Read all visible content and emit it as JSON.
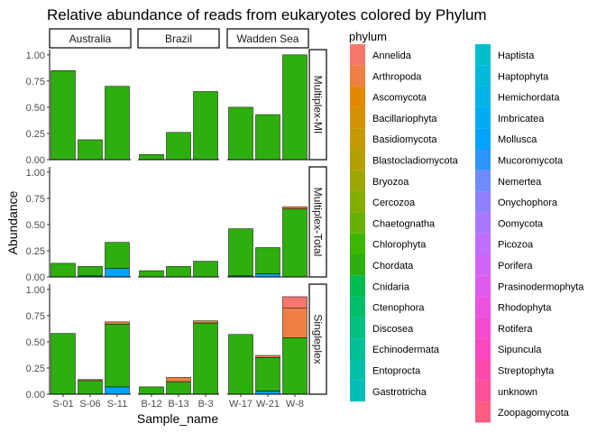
{
  "chart_data": {
    "type": "bar",
    "title": "Relative abundance of reads from eukaryotes colored by Phylum",
    "xlabel": "Sample_name",
    "ylabel": "Abundance",
    "legend_title": "phylum",
    "legend_placement": "right",
    "ylim": [
      0,
      1.05
    ],
    "y_ticks": [
      "0.00",
      "0.25",
      "0.50",
      "0.75",
      "1.00"
    ],
    "grid": false,
    "facet_columns": [
      "Australia",
      "Brazil",
      "Wadden Sea"
    ],
    "facet_rows": [
      "Multiplex-MI",
      "Multiplex-Total",
      "Singleplex"
    ],
    "categories": {
      "Australia": [
        "S-01",
        "S-06",
        "S-11"
      ],
      "Brazil": [
        "B-12",
        "B-13",
        "B-3"
      ],
      "Wadden Sea": [
        "W-17",
        "W-21",
        "W-8"
      ]
    },
    "legend": [
      {
        "name": "Annelida",
        "color": "#F8766D"
      },
      {
        "name": "Arthropoda",
        "color": "#EE8044"
      },
      {
        "name": "Ascomycota",
        "color": "#E38900"
      },
      {
        "name": "Bacillariophyta",
        "color": "#D59100"
      },
      {
        "name": "Basidiomycota",
        "color": "#C59900"
      },
      {
        "name": "Blastocladiomycota",
        "color": "#B3A000"
      },
      {
        "name": "Bryozoa",
        "color": "#9DA700"
      },
      {
        "name": "Cercozoa",
        "color": "#85AD00"
      },
      {
        "name": "Chaetognatha",
        "color": "#68B100"
      },
      {
        "name": "Chlorophyta",
        "color": "#3DB600"
      },
      {
        "name": "Chordata",
        "color": "#2FAE10"
      },
      {
        "name": "Cnidaria",
        "color": "#00BB4E"
      },
      {
        "name": "Ctenophora",
        "color": "#00BD6A"
      },
      {
        "name": "Discosea",
        "color": "#00BF81"
      },
      {
        "name": "Echinodermata",
        "color": "#00C096"
      },
      {
        "name": "Entoprocta",
        "color": "#00C0A9"
      },
      {
        "name": "Gastrotricha",
        "color": "#00BFBB"
      },
      {
        "name": "Haptista",
        "color": "#00BDCC"
      },
      {
        "name": "Haptophyta",
        "color": "#00B9DB"
      },
      {
        "name": "Hemichordata",
        "color": "#00B3E9"
      },
      {
        "name": "Imbricatea",
        "color": "#00ACF5"
      },
      {
        "name": "Mollusca",
        "color": "#00A3FF"
      },
      {
        "name": "Mucoromycota",
        "color": "#2D96FF"
      },
      {
        "name": "Nemertea",
        "color": "#6E8BFF"
      },
      {
        "name": "Onychophora",
        "color": "#8F80FF"
      },
      {
        "name": "Oomycota",
        "color": "#A978FF"
      },
      {
        "name": "Picozoa",
        "color": "#BF6EFF"
      },
      {
        "name": "Porifera",
        "color": "#D063F8"
      },
      {
        "name": "Prasinodermophyta",
        "color": "#DE5BEE"
      },
      {
        "name": "Rhodophyta",
        "color": "#EB52DF"
      },
      {
        "name": "Rotifera",
        "color": "#F44ACF"
      },
      {
        "name": "Sipuncula",
        "color": "#FB47BE"
      },
      {
        "name": "Streptophyta",
        "color": "#FF4AAB"
      },
      {
        "name": "unknown",
        "color": "#FF5197"
      },
      {
        "name": "Zoopagomycota",
        "color": "#FF5C82"
      }
    ],
    "panels": [
      {
        "row": "Multiplex-MI",
        "col": "Australia",
        "bars": [
          {
            "x": "S-01",
            "segments": [
              {
                "phylum": "Chordata",
                "value": 0.85
              }
            ]
          },
          {
            "x": "S-06",
            "segments": [
              {
                "phylum": "Chordata",
                "value": 0.19
              }
            ]
          },
          {
            "x": "S-11",
            "segments": [
              {
                "phylum": "Chordata",
                "value": 0.7
              }
            ]
          }
        ]
      },
      {
        "row": "Multiplex-MI",
        "col": "Brazil",
        "bars": [
          {
            "x": "B-12",
            "segments": [
              {
                "phylum": "Chordata",
                "value": 0.05
              }
            ]
          },
          {
            "x": "B-13",
            "segments": [
              {
                "phylum": "Chordata",
                "value": 0.26
              }
            ]
          },
          {
            "x": "B-3",
            "segments": [
              {
                "phylum": "Chordata",
                "value": 0.65
              }
            ]
          }
        ]
      },
      {
        "row": "Multiplex-MI",
        "col": "Wadden Sea",
        "bars": [
          {
            "x": "W-17",
            "segments": [
              {
                "phylum": "Chordata",
                "value": 0.5
              }
            ]
          },
          {
            "x": "W-21",
            "segments": [
              {
                "phylum": "Chordata",
                "value": 0.43
              }
            ]
          },
          {
            "x": "W-8",
            "segments": [
              {
                "phylum": "Chordata",
                "value": 1.0
              }
            ]
          }
        ]
      },
      {
        "row": "Multiplex-Total",
        "col": "Australia",
        "bars": [
          {
            "x": "S-01",
            "segments": [
              {
                "phylum": "Chordata",
                "value": 0.13
              }
            ]
          },
          {
            "x": "S-06",
            "segments": [
              {
                "phylum": "Mollusca",
                "value": 0.01
              },
              {
                "phylum": "Chordata",
                "value": 0.09
              }
            ]
          },
          {
            "x": "S-11",
            "segments": [
              {
                "phylum": "Mollusca",
                "value": 0.08
              },
              {
                "phylum": "Chordata",
                "value": 0.25
              }
            ]
          }
        ]
      },
      {
        "row": "Multiplex-Total",
        "col": "Brazil",
        "bars": [
          {
            "x": "B-12",
            "segments": [
              {
                "phylum": "Chordata",
                "value": 0.06
              }
            ]
          },
          {
            "x": "B-13",
            "segments": [
              {
                "phylum": "Chordata",
                "value": 0.1
              }
            ]
          },
          {
            "x": "B-3",
            "segments": [
              {
                "phylum": "Chordata",
                "value": 0.15
              }
            ]
          }
        ]
      },
      {
        "row": "Multiplex-Total",
        "col": "Wadden Sea",
        "bars": [
          {
            "x": "W-17",
            "segments": [
              {
                "phylum": "Mollusca",
                "value": 0.01
              },
              {
                "phylum": "Chordata",
                "value": 0.45
              }
            ]
          },
          {
            "x": "W-21",
            "segments": [
              {
                "phylum": "Mollusca",
                "value": 0.03
              },
              {
                "phylum": "Chordata",
                "value": 0.25
              }
            ]
          },
          {
            "x": "W-8",
            "segments": [
              {
                "phylum": "Chordata",
                "value": 0.65
              },
              {
                "phylum": "Arthropoda",
                "value": 0.02
              }
            ]
          }
        ]
      },
      {
        "row": "Singleplex",
        "col": "Australia",
        "bars": [
          {
            "x": "S-01",
            "segments": [
              {
                "phylum": "Chordata",
                "value": 0.58
              }
            ]
          },
          {
            "x": "S-06",
            "segments": [
              {
                "phylum": "Chordata",
                "value": 0.13
              },
              {
                "phylum": "Arthropoda",
                "value": 0.01
              }
            ]
          },
          {
            "x": "S-11",
            "segments": [
              {
                "phylum": "Mollusca",
                "value": 0.07
              },
              {
                "phylum": "Chordata",
                "value": 0.6
              },
              {
                "phylum": "Arthropoda",
                "value": 0.02
              }
            ]
          }
        ]
      },
      {
        "row": "Singleplex",
        "col": "Brazil",
        "bars": [
          {
            "x": "B-12",
            "segments": [
              {
                "phylum": "Chordata",
                "value": 0.07
              }
            ]
          },
          {
            "x": "B-13",
            "segments": [
              {
                "phylum": "Chordata",
                "value": 0.12
              },
              {
                "phylum": "Arthropoda",
                "value": 0.04
              }
            ]
          },
          {
            "x": "B-3",
            "segments": [
              {
                "phylum": "Chordata",
                "value": 0.68
              },
              {
                "phylum": "Arthropoda",
                "value": 0.02
              }
            ]
          }
        ]
      },
      {
        "row": "Singleplex",
        "col": "Wadden Sea",
        "bars": [
          {
            "x": "W-17",
            "segments": [
              {
                "phylum": "Chordata",
                "value": 0.57
              }
            ]
          },
          {
            "x": "W-21",
            "segments": [
              {
                "phylum": "Mollusca",
                "value": 0.03
              },
              {
                "phylum": "Chordata",
                "value": 0.32
              },
              {
                "phylum": "Arthropoda",
                "value": 0.02
              }
            ]
          },
          {
            "x": "W-8",
            "segments": [
              {
                "phylum": "Chordata",
                "value": 0.54
              },
              {
                "phylum": "Arthropoda",
                "value": 0.28
              },
              {
                "phylum": "Annelida",
                "value": 0.11
              }
            ]
          }
        ]
      }
    ]
  }
}
